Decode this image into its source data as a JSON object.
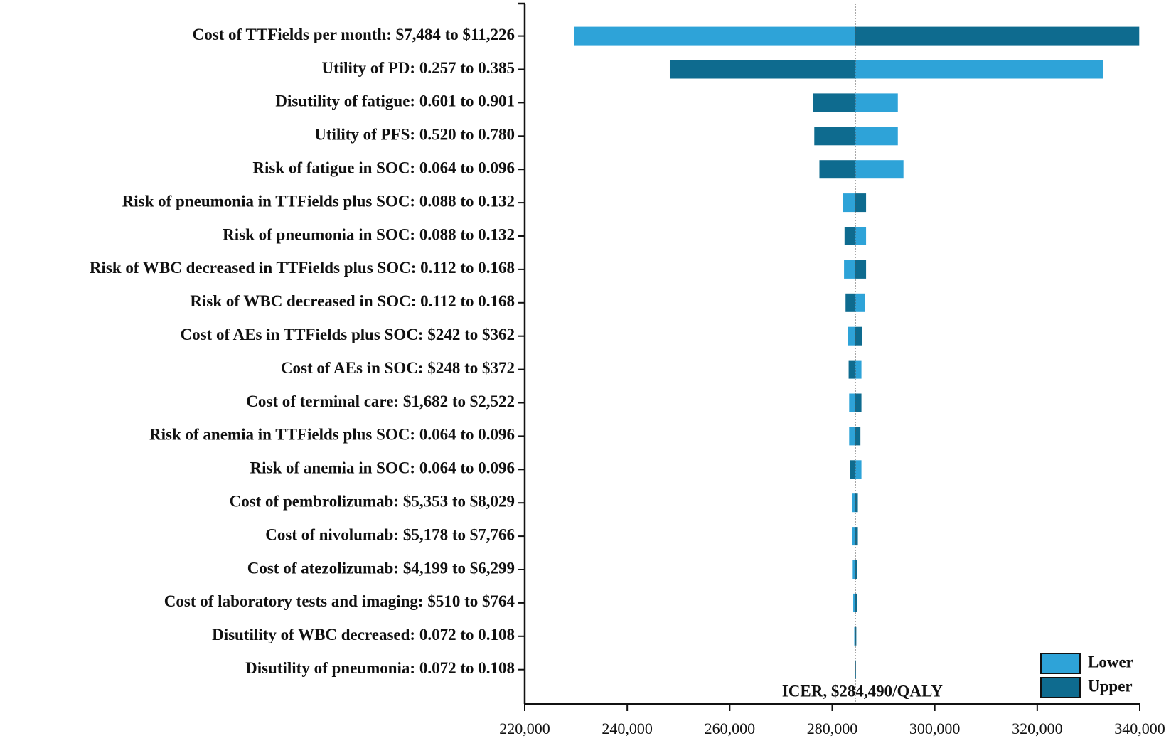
{
  "chart_data": {
    "type": "tornado",
    "categories": [
      "Cost of TTFields per month: $7,484 to $11,226",
      "Utility of PD: 0.257 to 0.385",
      "Disutility of fatigue: 0.601 to 0.901",
      "Utility of PFS: 0.520 to 0.780",
      "Risk of fatigue in SOC: 0.064 to 0.096",
      "Risk of pneumonia in TTFields plus SOC: 0.088 to 0.132",
      "Risk of pneumonia in SOC: 0.088 to 0.132",
      "Risk of WBC decreased in TTFields plus SOC: 0.112 to 0.168",
      "Risk of WBC decreased in SOC: 0.112 to 0.168",
      "Cost of AEs in TTFields plus SOC: $242 to $362",
      "Cost of AEs in SOC: $248 to $372",
      "Cost of terminal care: $1,682 to $2,522",
      "Risk of anemia in TTFields plus SOC: 0.064 to 0.096",
      "Risk of anemia in SOC: 0.064 to 0.096",
      "Cost of pembrolizumab: $5,353 to $8,029",
      "Cost of nivolumab: $5,178 to $7,766",
      "Cost of atezolizumab: $4,199 to $6,299",
      "Cost of laboratory tests and imaging: $510 to $764",
      "Disutility of WBC decreased: 0.072 to 0.108",
      "Disutility of pneumonia: 0.072 to 0.108"
    ],
    "series": [
      {
        "name": "Lower",
        "color": "#2ea3d8",
        "values": [
          229700,
          332900,
          292800,
          292800,
          293900,
          282100,
          286600,
          282300,
          286400,
          283000,
          285700,
          283300,
          283300,
          285700,
          283900,
          283900,
          284000,
          284100,
          284300,
          284400
        ]
      },
      {
        "name": "Upper",
        "color": "#0e6b8f",
        "values": [
          339900,
          248300,
          276300,
          276500,
          277500,
          286600,
          282400,
          286600,
          282600,
          285800,
          283200,
          285700,
          285500,
          283500,
          285000,
          285000,
          284900,
          284800,
          284700,
          284600
        ]
      }
    ],
    "base_value": 284490,
    "annotation": "ICER, $284,490/QALY",
    "xlim": [
      220000,
      340000
    ],
    "xticks": [
      {
        "value": 220000,
        "label": "220,000"
      },
      {
        "value": 240000,
        "label": "240,000"
      },
      {
        "value": 260000,
        "label": "260,000"
      },
      {
        "value": 280000,
        "label": "280,000"
      },
      {
        "value": 300000,
        "label": "300,000"
      },
      {
        "value": 320000,
        "label": "320,000"
      },
      {
        "value": 340000,
        "label": "340,000"
      }
    ],
    "legend": "lower right"
  }
}
